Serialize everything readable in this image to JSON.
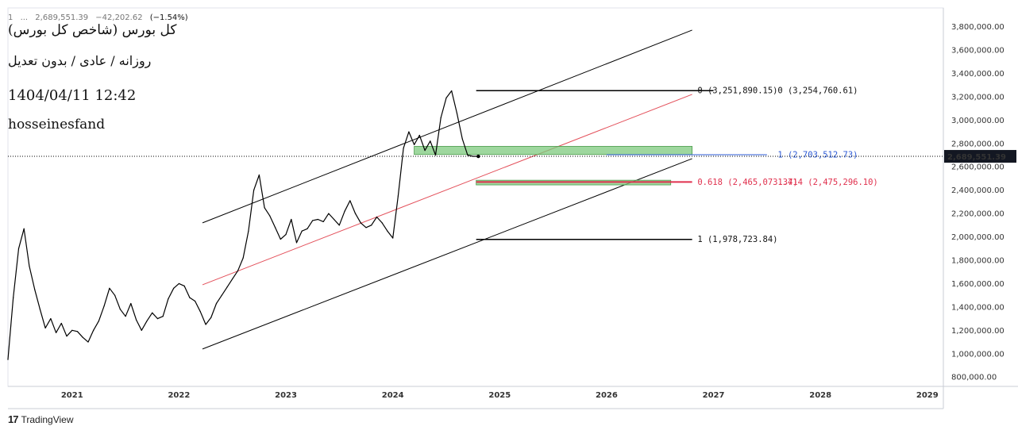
{
  "header": {
    "symbol": "1",
    "currency": "...",
    "last": "2,689,551.39",
    "change": "−42,202.62",
    "change_pct": "(−1.54%)"
  },
  "annotations": {
    "title": "کل بورس (شاخص کل بورس)",
    "subtitle": "روزانه / عادی / بدون تعدیل",
    "datetime": "1404/04/11 12:42",
    "author": "hosseinesfand"
  },
  "footer": {
    "brand": "TradingView",
    "logo_text": "17"
  },
  "chart_data": {
    "type": "line",
    "ylim": [
      720000,
      3960000
    ],
    "xlim": [
      2020.4,
      2029.15
    ],
    "y_ticks": [
      "800,000.00",
      "1,000,000.00",
      "1,200,000.00",
      "1,400,000.00",
      "1,600,000.00",
      "1,800,000.00",
      "2,000,000.00",
      "2,200,000.00",
      "2,400,000.00",
      "2,600,000.00",
      "2,800,000.00",
      "3,000,000.00",
      "3,200,000.00",
      "3,400,000.00",
      "3,600,000.00",
      "3,800,000.00"
    ],
    "y_tick_values": [
      800000,
      1000000,
      1200000,
      1400000,
      1600000,
      1800000,
      2000000,
      2200000,
      2400000,
      2600000,
      2800000,
      3000000,
      3200000,
      3400000,
      3600000,
      3800000
    ],
    "x_ticks": [
      "2021",
      "2022",
      "2023",
      "2024",
      "2025",
      "2026",
      "2027",
      "2028",
      "2029"
    ],
    "x_tick_values": [
      2021,
      2022,
      2023,
      2024,
      2025,
      2026,
      2027,
      2028,
      2029
    ],
    "last_price_label": "2,689,551.39",
    "last_price": 2689551.39,
    "series": [
      {
        "x": [
          2020.4,
          2020.45,
          2020.5,
          2020.55,
          2020.6,
          2020.65,
          2020.7,
          2020.75,
          2020.8,
          2020.85,
          2020.9,
          2020.95,
          2021.0,
          2021.05,
          2021.1,
          2021.15,
          2021.2,
          2021.25,
          2021.3,
          2021.35,
          2021.4,
          2021.45,
          2021.5,
          2021.55,
          2021.6,
          2021.65,
          2021.7,
          2021.75,
          2021.8,
          2021.85,
          2021.9,
          2021.95,
          2022.0,
          2022.05,
          2022.1,
          2022.15,
          2022.2,
          2022.25,
          2022.3,
          2022.35,
          2022.4,
          2022.45,
          2022.5,
          2022.55,
          2022.6,
          2022.65,
          2022.7,
          2022.75,
          2022.8,
          2022.85,
          2022.9,
          2022.95,
          2023.0,
          2023.05,
          2023.1,
          2023.15,
          2023.2,
          2023.25,
          2023.3,
          2023.35,
          2023.4,
          2023.45,
          2023.5,
          2023.55,
          2023.6,
          2023.65,
          2023.7,
          2023.75,
          2023.8,
          2023.85,
          2023.9,
          2023.95,
          2024.0,
          2024.05,
          2024.1,
          2024.15,
          2024.2,
          2024.25,
          2024.3,
          2024.35,
          2024.4,
          2024.45,
          2024.5,
          2024.55,
          2024.6,
          2024.65,
          2024.7,
          2024.75,
          2024.8,
          2024.85,
          2024.9,
          2024.95,
          2025.0,
          2025.05,
          2025.1,
          2025.15,
          2025.2,
          2025.25,
          2025.3,
          2025.35,
          2025.4,
          2025.45
        ],
        "y": [
          950000,
          1480000,
          1900000,
          2070000,
          1750000,
          1550000,
          1380000,
          1220000,
          1300000,
          1180000,
          1260000,
          1150000,
          1200000,
          1190000,
          1140000,
          1100000,
          1200000,
          1280000,
          1410000,
          1560000,
          1500000,
          1380000,
          1320000,
          1430000,
          1290000,
          1200000,
          1280000,
          1350000,
          1300000,
          1320000,
          1470000,
          1560000,
          1600000,
          1580000,
          1480000,
          1450000,
          1360000,
          1250000,
          1310000,
          1430000,
          1500000,
          1570000,
          1640000,
          1710000,
          1820000,
          2050000,
          2400000,
          2530000,
          2250000,
          2180000,
          2080000,
          1980000,
          2020000,
          2150000,
          1950000,
          2050000,
          2070000,
          2140000,
          2150000,
          2130000,
          2200000,
          2150000,
          2100000,
          2220000,
          2310000,
          2200000,
          2120000,
          2080000,
          2100000,
          2170000,
          2120000,
          2050000,
          1990000,
          2350000,
          2760000,
          2900000,
          2790000,
          2870000,
          2740000,
          2820000,
          2700000,
          3020000,
          3190000,
          3250000,
          3060000,
          2840000,
          2700000,
          2690000,
          2689551,
          2689551,
          2689551,
          2689551,
          2689551,
          2689551,
          2689551,
          2689551,
          2689551,
          2689551,
          2689551,
          2689551,
          2689551,
          2689551
        ],
        "visible_until_index": 88
      }
    ],
    "fib_labels": {
      "top_left": "0 (3,251,890.15)",
      "top_right": "0 (3,254,760.61)",
      "mid_blue": "1 (2,703,512.73)",
      "red_left": "0.618 (2,465,073.37)",
      "red_right": "1.414 (2,475,296.10)",
      "bottom": "1 (1,978,723.84)"
    },
    "fib_values": {
      "top": 3251890.15,
      "mid_blue": 2703512.73,
      "red": 2470000,
      "bottom": 1978723.84
    },
    "channel": {
      "upper": {
        "x": [
          2022.22,
          2026.8
        ],
        "y": [
          2120000,
          3770000
        ]
      },
      "middle": {
        "x": [
          2022.22,
          2026.8
        ],
        "y": [
          1590000,
          3220000
        ]
      },
      "lower": {
        "x": [
          2022.22,
          2026.8
        ],
        "y": [
          1040000,
          2670000
        ]
      }
    },
    "zones": [
      {
        "x": [
          2024.2,
          2026.8
        ],
        "y": [
          2705000,
          2775000
        ],
        "color": "#7ec97e"
      },
      {
        "x": [
          2024.78,
          2026.6
        ],
        "y": [
          2445000,
          2485000
        ],
        "color": "#7ec97e"
      }
    ],
    "colors": {
      "price": "#000000",
      "channel": "#000000",
      "mid_channel": "#e34f5a",
      "fib_blue": "#2e5bd6",
      "fib_red": "#e0304d",
      "zone": "#7ec97e",
      "axis_tag_bg": "#131722"
    }
  }
}
